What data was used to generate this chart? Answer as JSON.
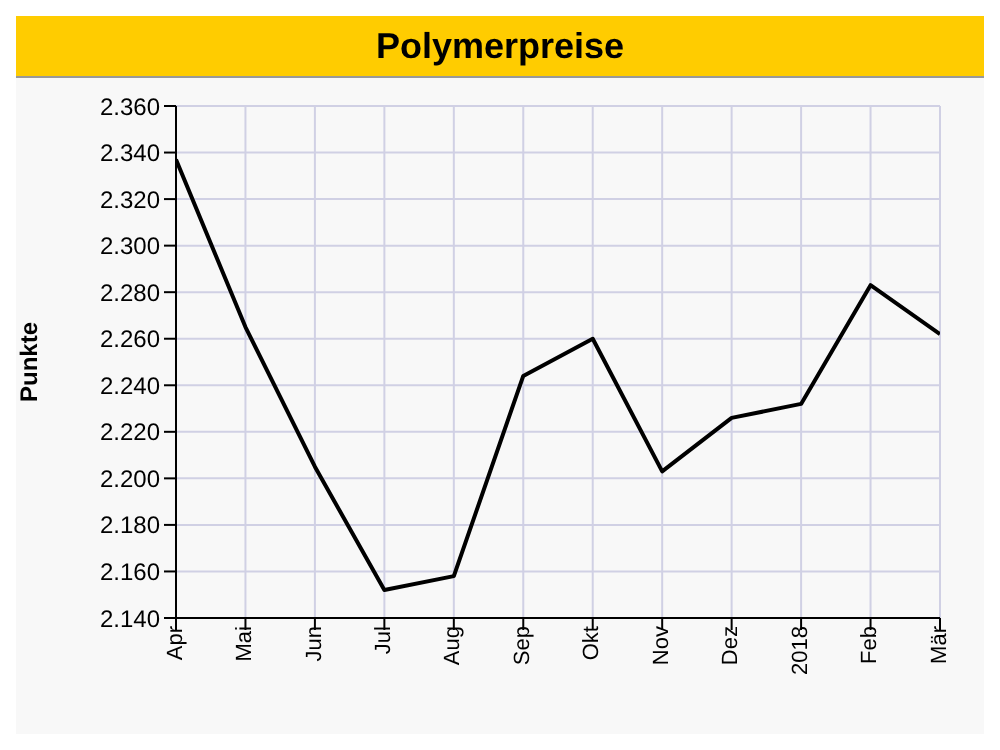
{
  "chart_data": {
    "type": "line",
    "title": "Polymerpreise",
    "ylabel": "Punkte",
    "categories": [
      "Apr",
      "Mai",
      "Jun",
      "Jul",
      "Aug",
      "Sep",
      "Okt",
      "Nov",
      "Dez",
      "2018",
      "Feb",
      "Mär"
    ],
    "series": [
      {
        "color": "#000000",
        "values": [
          2337,
          2265,
          2205,
          2152,
          2158,
          2244,
          2260,
          2203,
          2226,
          2232,
          2283,
          2262
        ]
      }
    ],
    "ylim": [
      2140,
      2360
    ],
    "yticks": [
      {
        "value": 2140,
        "label": "2.140"
      },
      {
        "value": 2160,
        "label": "2.160"
      },
      {
        "value": 2180,
        "label": "2.180"
      },
      {
        "value": 2200,
        "label": "2.200"
      },
      {
        "value": 2220,
        "label": "2.220"
      },
      {
        "value": 2240,
        "label": "2.240"
      },
      {
        "value": 2260,
        "label": "2.260"
      },
      {
        "value": 2280,
        "label": "2.280"
      },
      {
        "value": 2300,
        "label": "2.300"
      },
      {
        "value": 2320,
        "label": "2.320"
      },
      {
        "value": 2340,
        "label": "2.340"
      },
      {
        "value": 2360,
        "label": "2.360"
      }
    ],
    "grid": true,
    "marker": "none",
    "line_style": "solid"
  }
}
